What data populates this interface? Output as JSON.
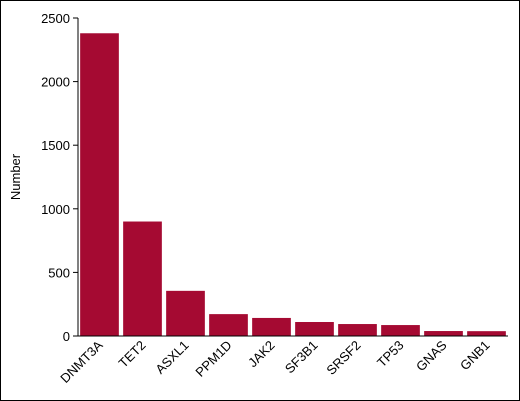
{
  "chart_data": {
    "type": "bar",
    "ylabel": "Number",
    "categories": [
      "DNMT3A",
      "TET2",
      "ASXL1",
      "PPM1D",
      "JAK2",
      "SF3B1",
      "SRSF2",
      "TP53",
      "GNAS",
      "GNB1"
    ],
    "values": [
      2380,
      900,
      355,
      172,
      142,
      110,
      94,
      86,
      39,
      38
    ],
    "color": "#a50a32",
    "ylim": [
      0,
      2500
    ],
    "yticks": [
      0,
      500,
      1000,
      1500,
      2000,
      2500
    ]
  }
}
